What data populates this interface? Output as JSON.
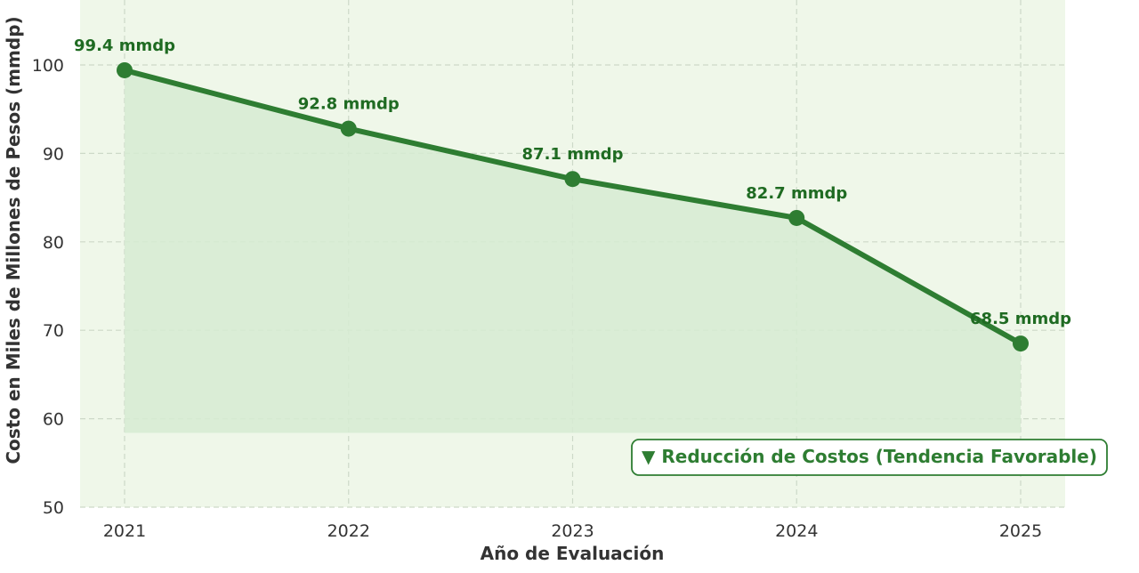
{
  "chart_data": {
    "type": "line",
    "title": "",
    "xlabel": "Año de Evaluación",
    "ylabel": "Costo en Miles de Millones de Pesos (mmdp)",
    "x": [
      "2021",
      "2022",
      "2023",
      "2024",
      "2025"
    ],
    "series": [
      {
        "values": [
          99.4,
          92.8,
          87.1,
          82.7,
          68.5
        ]
      }
    ],
    "data_labels": [
      "99.4 mmdp",
      "92.8 mmdp",
      "87.1 mmdp",
      "82.7 mmdp",
      "68.5 mmdp"
    ],
    "ylim": [
      50,
      100
    ],
    "yticks": [
      50,
      60,
      70,
      80,
      90,
      100
    ],
    "area_fill_baseline": 58.4,
    "grid": true,
    "annotation": "▼ Reducción de Costos (Tendencia Favorable)",
    "annotation_position": "bottom-right",
    "colors": {
      "line": "#2e7d32",
      "marker": "#2e7d32",
      "area_fill": "#d6ebd2",
      "plot_background": "#eff7e9",
      "grid": "#cdd9c8",
      "annotation_border": "#2e7d32",
      "label_text": "#1f6b22"
    }
  }
}
